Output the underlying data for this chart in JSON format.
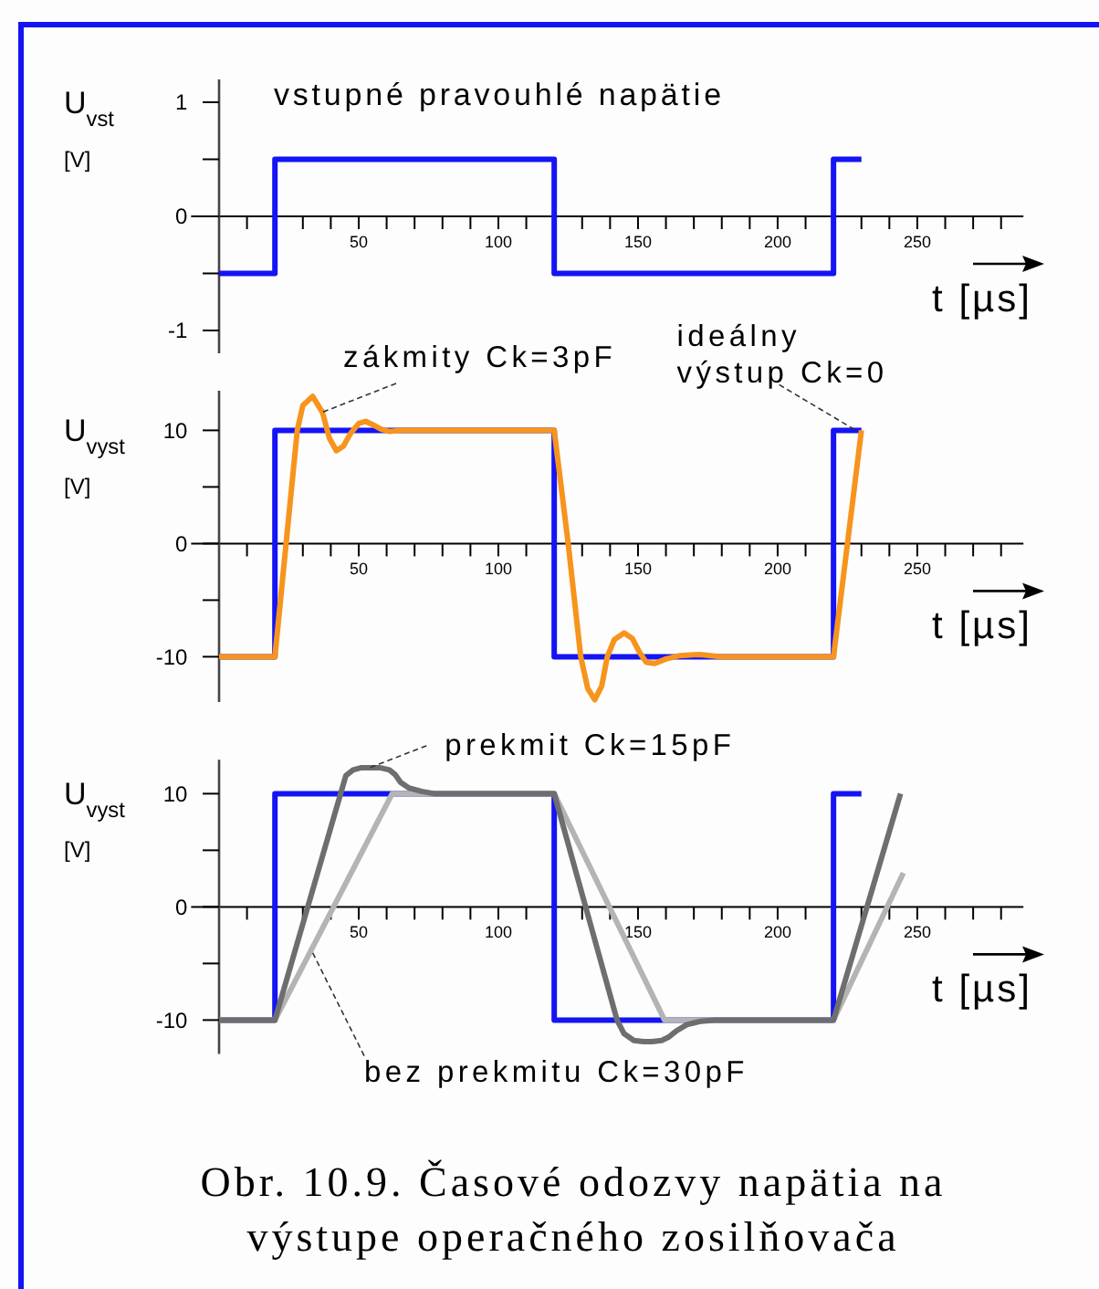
{
  "chart_data": [
    {
      "type": "line",
      "title": "vstupné pravouhlé napätie",
      "xlabel": "t [µs]",
      "ylabel": "U$_{vst}$\n[V]",
      "x": [
        0,
        20,
        20,
        120,
        120,
        220,
        220,
        230
      ],
      "series": [
        {
          "color": "#1414f5",
          "values": [
            -0.5,
            -0.5,
            0.5,
            0.5,
            -0.5,
            -0.5,
            0.5,
            0.5
          ]
        }
      ],
      "xlim": [
        -10,
        288
      ],
      "ylim": [
        -1.2,
        1.2
      ],
      "xticks": [
        {
          "value": 10,
          "label": null
        },
        {
          "value": 20,
          "label": null
        },
        {
          "value": 30,
          "label": null
        },
        {
          "value": 40,
          "label": null
        },
        50,
        {
          "value": 60,
          "label": null
        },
        {
          "value": 70,
          "label": null
        },
        {
          "value": 80,
          "label": null
        },
        {
          "value": 90,
          "label": null
        },
        100,
        {
          "value": 110,
          "label": null
        },
        {
          "value": 120,
          "label": null
        },
        {
          "value": 130,
          "label": null
        },
        {
          "value": 140,
          "label": null
        },
        150,
        {
          "value": 160,
          "label": null
        },
        {
          "value": 170,
          "label": null
        },
        {
          "value": 180,
          "label": null
        },
        {
          "value": 190,
          "label": null
        },
        200,
        {
          "value": 210,
          "label": null
        },
        {
          "value": 220,
          "label": null
        },
        {
          "value": 230,
          "label": null
        },
        {
          "value": 240,
          "label": null
        },
        250,
        {
          "value": 260,
          "label": null
        },
        {
          "value": 270,
          "label": null
        },
        {
          "value": 280,
          "label": null
        }
      ],
      "yticks": [
        -1,
        {
          "value": -0.5,
          "label": null
        },
        0,
        {
          "value": 0.5,
          "label": null
        },
        1
      ]
    },
    {
      "type": "line",
      "xlabel": "t [µs]",
      "ylabel": "U$_{vyst}$\n[V]",
      "xlim": [
        -10,
        288
      ],
      "ylim": [
        -14,
        13.5
      ],
      "xticks": [
        {
          "value": 10,
          "label": null
        },
        {
          "value": 20,
          "label": null
        },
        {
          "value": 30,
          "label": null
        },
        {
          "value": 40,
          "label": null
        },
        50,
        {
          "value": 60,
          "label": null
        },
        {
          "value": 70,
          "label": null
        },
        {
          "value": 80,
          "label": null
        },
        {
          "value": 90,
          "label": null
        },
        100,
        {
          "value": 110,
          "label": null
        },
        {
          "value": 120,
          "label": null
        },
        {
          "value": 130,
          "label": null
        },
        {
          "value": 140,
          "label": null
        },
        150,
        {
          "value": 160,
          "label": null
        },
        {
          "value": 170,
          "label": null
        },
        {
          "value": 180,
          "label": null
        },
        {
          "value": 190,
          "label": null
        },
        200,
        {
          "value": 210,
          "label": null
        },
        {
          "value": 220,
          "label": null
        },
        {
          "value": 230,
          "label": null
        },
        {
          "value": 240,
          "label": null
        },
        250,
        {
          "value": 260,
          "label": null
        },
        {
          "value": 270,
          "label": null
        },
        {
          "value": 280,
          "label": null
        }
      ],
      "yticks": [
        -10,
        {
          "value": -5,
          "label": null
        },
        0,
        {
          "value": 5,
          "label": null
        },
        10
      ],
      "series": [
        {
          "color": "#1414f5",
          "x": [
            0,
            20,
            20,
            120,
            120,
            220,
            220,
            230
          ],
          "values": [
            -10,
            -10,
            10,
            10,
            -10,
            -10,
            10,
            10
          ]
        },
        {
          "color": "#f7941d",
          "x": [
            0,
            20,
            24,
            28,
            30,
            33.5,
            37,
            39.5,
            42,
            44.5,
            47,
            50,
            52.5,
            55,
            58,
            61,
            65,
            70,
            120,
            125,
            129.5,
            132,
            134.5,
            137,
            139,
            141.5,
            145,
            148,
            150.5,
            153,
            156,
            160,
            165,
            172,
            180,
            220,
            230
          ],
          "values": [
            -10,
            -10,
            0,
            10,
            12.2,
            13,
            11.6,
            9.3,
            8.2,
            8.6,
            9.7,
            10.6,
            10.8,
            10.5,
            10.1,
            9.9,
            10,
            10,
            10,
            0,
            -10,
            -12.8,
            -13.8,
            -12.6,
            -10,
            -8.5,
            -7.9,
            -8.4,
            -9.6,
            -10.5,
            -10.6,
            -10.2,
            -9.9,
            -9.8,
            -10,
            -10,
            10
          ]
        }
      ],
      "annotations": [
        {
          "text": "zákmity Ck=3pF",
          "x": 37,
          "y": 11.6
        },
        {
          "text": "ideálny\nvýstup Ck=0",
          "x": 228,
          "y": 10
        }
      ]
    },
    {
      "type": "line",
      "xlabel": "t [µs]",
      "ylabel": "U$_{vyst}$\n[V]",
      "xlim": [
        -10,
        288
      ],
      "ylim": [
        -13,
        13
      ],
      "xticks": [
        {
          "value": 10,
          "label": null
        },
        {
          "value": 20,
          "label": null
        },
        {
          "value": 30,
          "label": null
        },
        {
          "value": 40,
          "label": null
        },
        50,
        {
          "value": 60,
          "label": null
        },
        {
          "value": 70,
          "label": null
        },
        {
          "value": 80,
          "label": null
        },
        {
          "value": 90,
          "label": null
        },
        100,
        {
          "value": 110,
          "label": null
        },
        {
          "value": 120,
          "label": null
        },
        {
          "value": 130,
          "label": null
        },
        {
          "value": 140,
          "label": null
        },
        150,
        {
          "value": 160,
          "label": null
        },
        {
          "value": 170,
          "label": null
        },
        {
          "value": 180,
          "label": null
        },
        {
          "value": 190,
          "label": null
        },
        200,
        {
          "value": 210,
          "label": null
        },
        {
          "value": 220,
          "label": null
        },
        {
          "value": 230,
          "label": null
        },
        {
          "value": 240,
          "label": null
        },
        250,
        {
          "value": 260,
          "label": null
        },
        {
          "value": 270,
          "label": null
        },
        {
          "value": 280,
          "label": null
        }
      ],
      "yticks": [
        -10,
        {
          "value": -5,
          "label": null
        },
        0,
        {
          "value": 5,
          "label": null
        },
        10
      ],
      "series": [
        {
          "color": "#1414f5",
          "x": [
            0,
            20,
            20,
            120,
            120,
            220,
            220,
            230
          ],
          "values": [
            -10,
            -10,
            10,
            10,
            -10,
            -10,
            10,
            10
          ]
        },
        {
          "color": "#b4b4b4",
          "x": [
            0,
            20,
            62,
            120,
            159.5,
            220,
            245
          ],
          "values": [
            -10,
            -10,
            10,
            10,
            -10,
            -10,
            3
          ]
        },
        {
          "color": "#6e6e6e",
          "x": [
            0,
            20,
            45.4,
            48,
            51,
            54,
            57.5,
            61,
            63,
            65,
            68,
            72.5,
            77,
            120,
            142.5,
            145,
            148.5,
            152,
            155,
            158.5,
            161,
            163.5,
            167.5,
            172.5,
            177.5,
            220,
            244
          ],
          "values": [
            -10,
            -10,
            11.6,
            12.1,
            12.3,
            12.3,
            12.3,
            12.1,
            11.7,
            11,
            10.5,
            10.2,
            10,
            10,
            -10,
            -11.2,
            -11.8,
            -11.9,
            -11.9,
            -11.8,
            -11.5,
            -11,
            -10.4,
            -10.1,
            -10,
            -10,
            10
          ]
        }
      ],
      "annotations": [
        {
          "text": "prekmit Ck=15pF",
          "x": 54,
          "y": 12.3
        },
        {
          "text": "bez prekmitu Ck=30pF",
          "x": 33,
          "y": -3.8
        },
        "Obr. 10.9. Časové odozvy napätia na\nvýstupe operačného zosilňovača"
      ]
    }
  ]
}
